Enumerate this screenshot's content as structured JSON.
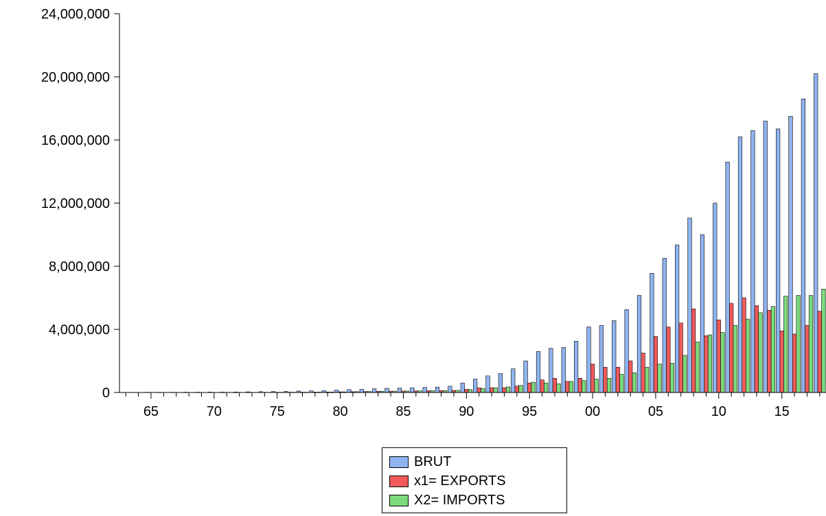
{
  "chart_data": {
    "type": "bar",
    "x": [
      1963,
      1964,
      1965,
      1966,
      1967,
      1968,
      1969,
      1970,
      1971,
      1972,
      1973,
      1974,
      1975,
      1976,
      1977,
      1978,
      1979,
      1980,
      1981,
      1982,
      1983,
      1984,
      1985,
      1986,
      1987,
      1988,
      1989,
      1990,
      1991,
      1992,
      1993,
      1994,
      1995,
      1996,
      1997,
      1998,
      1999,
      2000,
      2001,
      2002,
      2003,
      2004,
      2005,
      2006,
      2007,
      2008,
      2009,
      2010,
      2011,
      2012,
      2013,
      2014,
      2015,
      2016,
      2017,
      2018
    ],
    "x_tick_labels": [
      "65",
      "70",
      "75",
      "80",
      "85",
      "90",
      "95",
      "00",
      "05",
      "10",
      "15"
    ],
    "ylim": [
      0,
      24000000
    ],
    "y_ticks": [
      0,
      4000000,
      8000000,
      12000000,
      16000000,
      20000000,
      24000000
    ],
    "y_tick_labels": [
      "0",
      "4,000,000",
      "8,000,000",
      "12,000,000",
      "16,000,000",
      "20,000,000",
      "24,000,000"
    ],
    "series": [
      {
        "name": "BRUT",
        "color": "#8fb4f0",
        "values": [
          10000,
          10000,
          15000,
          15000,
          15000,
          20000,
          20000,
          25000,
          25000,
          30000,
          40000,
          50000,
          60000,
          75000,
          90000,
          100000,
          120000,
          150000,
          180000,
          200000,
          230000,
          260000,
          280000,
          300000,
          320000,
          340000,
          400000,
          600000,
          850000,
          1050000,
          1200000,
          1500000,
          2000000,
          2600000,
          2800000,
          2850000,
          3250000,
          4150000,
          4250000,
          4550000,
          5250000,
          6150000,
          7550000,
          8500000,
          9350000,
          11050000,
          10000000,
          12000000,
          14600000,
          16200000,
          16600000,
          17200000,
          16700000,
          17500000,
          18600000,
          20200000
        ]
      },
      {
        "name": "x1= EXPORTS",
        "color": "#f25a5a",
        "values": [
          3000,
          3000,
          4000,
          4000,
          4000,
          5000,
          5000,
          6000,
          6000,
          8000,
          10000,
          12000,
          15000,
          18000,
          20000,
          25000,
          30000,
          40000,
          50000,
          60000,
          70000,
          80000,
          90000,
          100000,
          110000,
          120000,
          130000,
          200000,
          300000,
          300000,
          300000,
          400000,
          600000,
          800000,
          900000,
          700000,
          900000,
          1800000,
          1600000,
          1600000,
          2000000,
          2500000,
          3550000,
          4150000,
          4400000,
          5300000,
          3600000,
          4600000,
          5650000,
          6000000,
          5500000,
          5200000,
          3900000,
          3700000,
          4250000,
          5150000
        ]
      },
      {
        "name": "X2= IMPORTS",
        "color": "#7cdb7c",
        "values": [
          3000,
          3000,
          4000,
          4000,
          4000,
          5000,
          5000,
          6000,
          6000,
          8000,
          10000,
          12000,
          15000,
          18000,
          20000,
          25000,
          30000,
          40000,
          50000,
          60000,
          70000,
          80000,
          90000,
          100000,
          110000,
          120000,
          130000,
          180000,
          250000,
          300000,
          350000,
          450000,
          650000,
          600000,
          550000,
          700000,
          750000,
          850000,
          900000,
          1150000,
          1250000,
          1600000,
          1800000,
          1850000,
          2350000,
          3200000,
          3650000,
          3800000,
          4250000,
          4650000,
          5050000,
          5450000,
          6100000,
          6150000,
          6150000,
          6550000
        ]
      }
    ],
    "legend_position": "bottom-center",
    "grid": false
  }
}
